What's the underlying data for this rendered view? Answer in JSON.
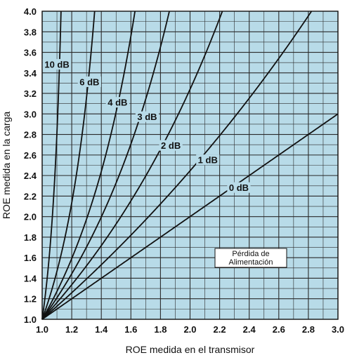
{
  "chart_data": {
    "type": "line",
    "xlabel": "ROE  medida en el transmisor",
    "ylabel": "ROE medida en la carga",
    "xlim": [
      1.0,
      3.0
    ],
    "ylim": [
      1.0,
      4.0
    ],
    "x_ticks": [
      "1.0",
      "1.2",
      "1.4",
      "1.6",
      "1.8",
      "2.0",
      "2.2",
      "2.4",
      "2.6",
      "2.8",
      "3.0"
    ],
    "y_ticks": [
      "1.0",
      "1.2",
      "1.4",
      "1.6",
      "1.8",
      "2.0",
      "2.2",
      "2.4",
      "2.6",
      "2.8",
      "3.0",
      "3.2",
      "3.4",
      "3.6",
      "3.8",
      "4.0"
    ],
    "grid": true,
    "background_color": "#b8dbe8",
    "line_color": "#111111",
    "legend_box_text": [
      "Pérdida de",
      "Alimentación"
    ],
    "series": [
      {
        "name": "0 dB",
        "loss_db": 0,
        "label_at": [
          2.33,
          2.28
        ]
      },
      {
        "name": "1 dB",
        "loss_db": 1,
        "label_at": [
          2.12,
          2.55
        ]
      },
      {
        "name": "2 dB",
        "loss_db": 2,
        "label_at": [
          1.87,
          2.69
        ]
      },
      {
        "name": "3 dB",
        "loss_db": 3,
        "label_at": [
          1.71,
          2.97
        ]
      },
      {
        "name": "4 dB",
        "loss_db": 4,
        "label_at": [
          1.51,
          3.11
        ]
      },
      {
        "name": "6 dB",
        "loss_db": 6,
        "label_at": [
          1.32,
          3.31
        ]
      },
      {
        "name": "10 dB",
        "loss_db": 10,
        "label_at": [
          1.1,
          3.48
        ]
      }
    ]
  }
}
